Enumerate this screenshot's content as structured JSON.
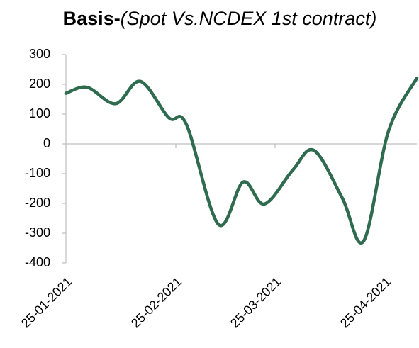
{
  "chart_data": {
    "type": "line",
    "title": "Basis-",
    "subtitle": "(Spot Vs.NCDEX 1st contract)",
    "x": [
      "25-01-2021",
      "31-01-2021",
      "08-02-2021",
      "15-02-2021",
      "23-02-2021",
      "28-02-2021",
      "09-03-2021",
      "16-03-2021",
      "22-03-2021",
      "30-03-2021",
      "05-04-2021",
      "13-04-2021",
      "19-04-2021",
      "26-04-2021",
      "04-05-2021"
    ],
    "series": [
      {
        "name": "Basis",
        "color": "#2e6b4f",
        "values": [
          170,
          190,
          135,
          210,
          88,
          65,
          -270,
          -128,
          -202,
          -88,
          -22,
          -183,
          -326,
          43,
          221
        ]
      }
    ],
    "xlim": [
      "25-01-2021",
      "04-05-2021"
    ],
    "xticks": [
      "25-01-2021",
      "25-02-2021",
      "25-03-2021",
      "25-04-2021"
    ],
    "ylim": [
      -400,
      300
    ],
    "yticks": [
      -400,
      -300,
      -200,
      -100,
      0,
      100,
      200,
      300
    ],
    "grid": false
  }
}
